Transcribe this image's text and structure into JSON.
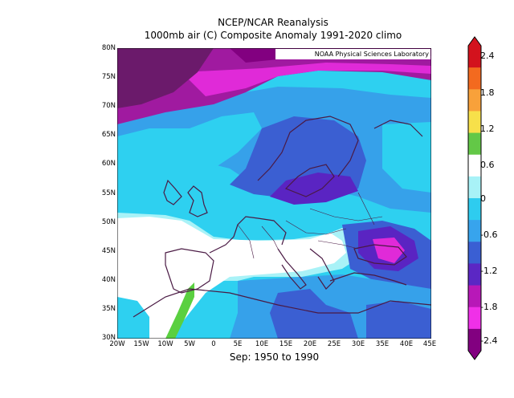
{
  "header": {
    "title": "NCEP/NCAR Reanalysis",
    "subtitle": "1000mb air (C) Composite Anomaly 1991-2020 climo"
  },
  "credit": "NOAA Physical Sciences Laboratory",
  "footer": "Sep: 1950 to 1990",
  "lat_labels": [
    "80N",
    "75N",
    "70N",
    "65N",
    "60N",
    "55N",
    "50N",
    "45N",
    "40N",
    "35N",
    "30N"
  ],
  "lon_labels": [
    "20W",
    "15W",
    "10W",
    "5W",
    "0",
    "5E",
    "10E",
    "15E",
    "20E",
    "25E",
    "30E",
    "35E",
    "40E",
    "45E"
  ],
  "colorbar": {
    "labels": [
      "2.4",
      "1.8",
      "1.2",
      "0.6",
      "0",
      "-0.6",
      "-1.2",
      "-1.8",
      "-2.4"
    ],
    "colors": [
      "#d3121d",
      "#f36a1f",
      "#f8a13a",
      "#f7e04a",
      "#63c847",
      "#ffffff",
      "#a8f2f7",
      "#2eccef",
      "#37a4ed",
      "#3a5fd3",
      "#5b27c4",
      "#b818b8",
      "#f030e8",
      "#820080"
    ]
  },
  "map_colors": {
    "deep_purple": "#6b1a6b",
    "purple": "#a01aa0",
    "magenta": "#e02ad8",
    "violet": "#5a24c2",
    "blue": "#3b5fd2",
    "mid_blue": "#36a1ea",
    "cyan": "#2ed0f0",
    "light_cyan": "#a9f2f7",
    "white": "#ffffff",
    "green": "#5ad040",
    "coast": "#4a1a44"
  }
}
